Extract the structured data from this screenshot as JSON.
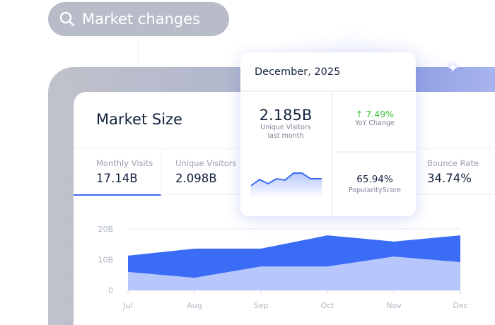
{
  "search": {
    "text": "Market changes",
    "icon": "search-icon"
  },
  "card": {
    "title": "Market Size",
    "stats": [
      {
        "label": "Monthly Visits",
        "value": "17.14B"
      },
      {
        "label": "Unique Visitors",
        "value": "2.098B"
      },
      {
        "label": "Bounce Rate",
        "value": "34.74%"
      }
    ]
  },
  "popup": {
    "date": "December, 2025",
    "visitors": "2.185B",
    "visitors_label1": "Unique Visitors",
    "visitors_label2": "last month",
    "yoy": "↑ 7.49%",
    "yoy_label": "YoY Change",
    "popularity": "65.94%",
    "popularity_label": "PopularityScore",
    "yoy_color": "#3cc23c"
  },
  "chart_data": {
    "type": "area",
    "categories": [
      "Jul",
      "Aug",
      "Sep",
      "Oct",
      "Nov",
      "Dec"
    ],
    "yticks": [
      "0",
      "10B",
      "20B"
    ],
    "ylim": [
      0,
      20
    ],
    "series": [
      {
        "values": [
          11.3,
          13.6,
          13.6,
          17.9,
          15.9,
          17.9
        ],
        "color": "#3b6cf5"
      },
      {
        "values": [
          6,
          4.1,
          7.8,
          7.8,
          11,
          9.2
        ],
        "color": "#b7c7fb"
      }
    ]
  },
  "colors": {
    "accent": "#3b6cf5"
  }
}
